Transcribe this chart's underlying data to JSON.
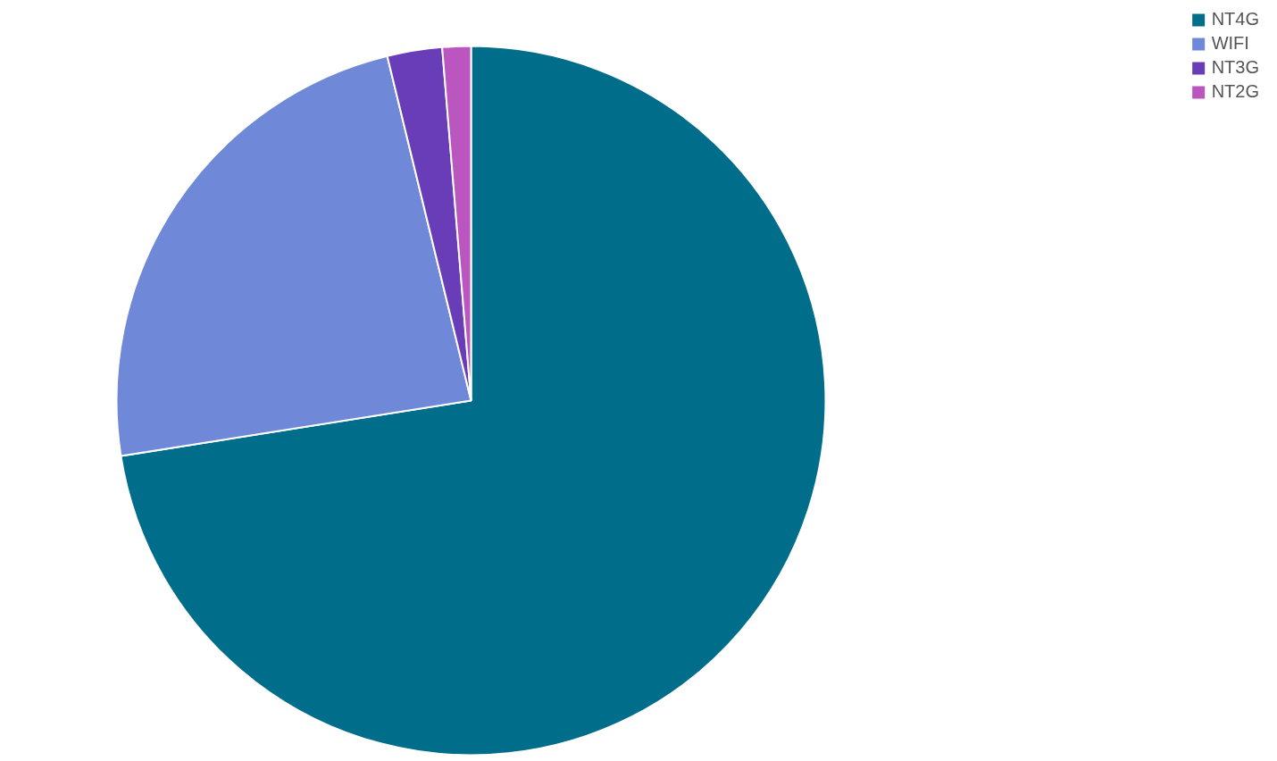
{
  "chart_data": {
    "type": "pie",
    "categories": [
      "NT4G",
      "WIFI",
      "NT3G",
      "NT2G"
    ],
    "values": [
      72.5,
      23.7,
      2.5,
      1.3
    ],
    "colors": [
      "#006d8a",
      "#6f88d8",
      "#6a3db8",
      "#bb55bf"
    ],
    "legend": "top right"
  }
}
